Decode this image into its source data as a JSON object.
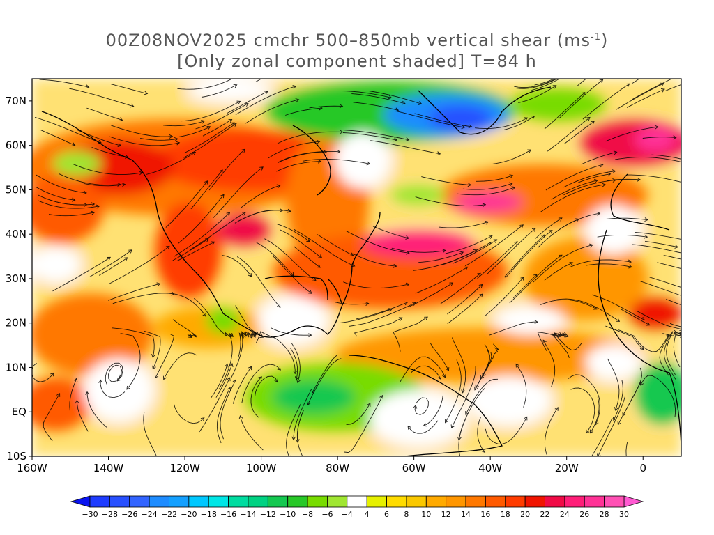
{
  "title": {
    "line1_prefix": "00Z08NOV2025 cmchr 500–850mb vertical shear (ms",
    "line1_sup": "-1",
    "line1_suffix": ")",
    "line2": "[Only zonal component shaded] T=84 h"
  },
  "map": {
    "lat_labels": [
      "70N",
      "60N",
      "50N",
      "40N",
      "30N",
      "20N",
      "10N",
      "EQ",
      "10S"
    ],
    "lon_labels": [
      "160W",
      "140W",
      "120W",
      "100W",
      "80W",
      "60W",
      "40W",
      "20W",
      "0"
    ],
    "lat_range": [
      -10,
      75
    ],
    "lon_range": [
      -160,
      10
    ]
  },
  "colorbar": {
    "labels": [
      "-30",
      "-28",
      "-26",
      "-24",
      "-22",
      "-20",
      "-18",
      "-16",
      "-14",
      "-12",
      "-10",
      "-8",
      "-6",
      "-4",
      "4",
      "6",
      "8",
      "10",
      "12",
      "14",
      "16",
      "18",
      "20",
      "22",
      "24",
      "26",
      "28",
      "30"
    ],
    "colors": [
      "#1e3cff",
      "#2850ff",
      "#3264ff",
      "#1e8cff",
      "#14a0ff",
      "#00c8ff",
      "#00e6e6",
      "#00dca0",
      "#00d282",
      "#14c850",
      "#28c828",
      "#78dc00",
      "#a0e632",
      "#ffffff",
      "#e6f000",
      "#ffdc00",
      "#fac800",
      "#ffaa00",
      "#ff9600",
      "#ff7800",
      "#ff5a00",
      "#ff3c00",
      "#f01400",
      "#f00a46",
      "#ff1e78",
      "#ff3296",
      "#ff50b4"
    ],
    "left_arrow_color": "#0a14f0",
    "right_arrow_color": "#ff5ad2"
  }
}
